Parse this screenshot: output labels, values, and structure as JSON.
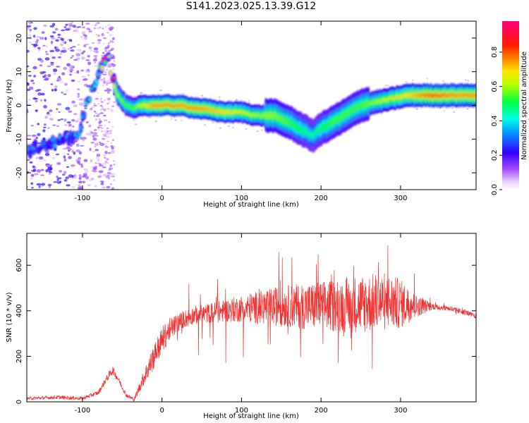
{
  "title": "S141.2023.025.13.39.G12",
  "colors": {
    "snr_line": "#f03232",
    "axis": "#000000",
    "background": "#ffffff"
  },
  "chart_data": [
    {
      "type": "heatmap",
      "title": "S141.2023.025.13.39.G12",
      "xlabel": "Height of straight line (km)",
      "ylabel": "Frequency (Hz)",
      "xlim": [
        -170,
        395
      ],
      "ylim": [
        -25,
        25
      ],
      "xticks": [
        -100,
        0,
        100,
        200,
        300
      ],
      "yticks": [
        -20,
        -10,
        0,
        10,
        20
      ],
      "colorbar": {
        "label": "Normalized spectral amplitude",
        "range": [
          0,
          0.98
        ],
        "ticks": [
          "0.0",
          "0.2",
          "0.4",
          "0.6",
          "0.8"
        ],
        "colormap": "rainbow (white-violet-blue-cyan-green-yellow-red-magenta)"
      },
      "ridge": {
        "x": [
          -165,
          -150,
          -135,
          -120,
          -105,
          -95,
          -85,
          -75,
          -68,
          -62,
          -55,
          -45,
          -35,
          -25,
          -10,
          0,
          20,
          50,
          80,
          100,
          120,
          140,
          160,
          175,
          190,
          200,
          215,
          230,
          250,
          270,
          290,
          310,
          340,
          370,
          395
        ],
        "frequency": [
          -13,
          -12,
          -11,
          -10,
          -8,
          0,
          7,
          12,
          15,
          8,
          3,
          0,
          -1,
          0,
          0,
          0,
          0,
          -1,
          -2,
          -2,
          -3,
          -3,
          -5,
          -7,
          -9,
          -7,
          -5,
          -3,
          0,
          1,
          2,
          3,
          3,
          3,
          3
        ],
        "amplitude": [
          0.3,
          0.3,
          0.35,
          0.35,
          0.4,
          0.45,
          0.55,
          0.7,
          0.8,
          0.8,
          0.6,
          0.55,
          0.55,
          0.65,
          0.75,
          0.75,
          0.75,
          0.75,
          0.7,
          0.65,
          0.6,
          0.6,
          0.55,
          0.5,
          0.45,
          0.5,
          0.55,
          0.55,
          0.55,
          0.6,
          0.65,
          0.7,
          0.8,
          0.75,
          0.75
        ]
      },
      "grid": false
    },
    {
      "type": "line",
      "xlabel": "Height of straight line (km)",
      "ylabel": "SNR (10 * v/v)",
      "xlim": [
        -170,
        395
      ],
      "ylim": [
        0,
        740
      ],
      "xticks": [
        -100,
        0,
        100,
        200,
        300
      ],
      "yticks": [
        0,
        200,
        400,
        600
      ],
      "envelope": {
        "x": [
          -170,
          -130,
          -100,
          -80,
          -70,
          -62,
          -55,
          -45,
          -35,
          -25,
          -10,
          0,
          10,
          25,
          40,
          60,
          80,
          100,
          150,
          200,
          250,
          280,
          300,
          320,
          340,
          360,
          380,
          395
        ],
        "snr": [
          15,
          20,
          15,
          40,
          100,
          140,
          100,
          30,
          10,
          90,
          200,
          270,
          320,
          360,
          380,
          390,
          400,
          410,
          420,
          420,
          430,
          440,
          430,
          420,
          420,
          410,
          395,
          375
        ],
        "noise": [
          6,
          8,
          8,
          10,
          15,
          20,
          15,
          10,
          8,
          30,
          60,
          60,
          50,
          40,
          40,
          45,
          50,
          60,
          90,
          110,
          130,
          130,
          110,
          50,
          15,
          12,
          12,
          10
        ],
        "spike_max": [
          0,
          0,
          0,
          0,
          0,
          0,
          0,
          0,
          0,
          0,
          0,
          60,
          80,
          120,
          180,
          200,
          230,
          240,
          250,
          260,
          300,
          310,
          300,
          120,
          40,
          20,
          20,
          20
        ]
      },
      "grid": false
    }
  ]
}
